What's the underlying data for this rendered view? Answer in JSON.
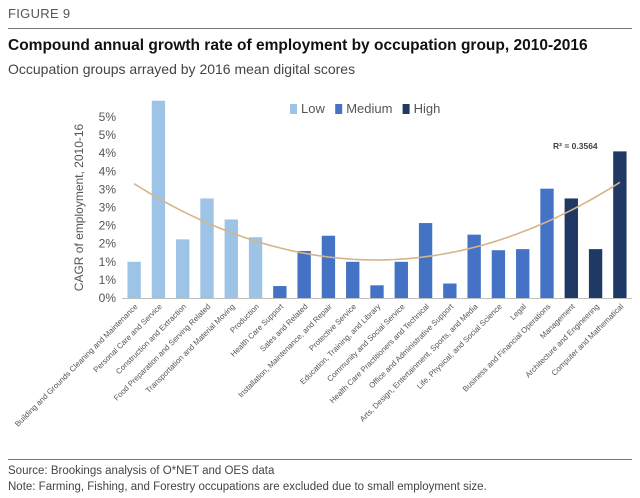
{
  "figure_label": "FIGURE 9",
  "title": "Compound annual growth rate of employment by occupation group, 2010-2016",
  "subtitle": "Occupation groups arrayed by 2016 mean digital scores",
  "source": "Source: Brookings analysis of O*NET and OES data",
  "note": "Note: Farming, Fishing, and Forestry occupations are excluded due to small employment size.",
  "chart_data": {
    "type": "bar",
    "ylabel": "CAGR of employment, 2010-16",
    "ylim": [
      0,
      5
    ],
    "yticks": [
      "0%",
      "1%",
      "1%",
      "2%",
      "2%",
      "3%",
      "3%",
      "4%",
      "4%",
      "5%",
      "5%"
    ],
    "yticks_values": [
      0,
      0.5,
      1,
      1.5,
      2,
      2.5,
      3,
      3.5,
      4,
      4.5,
      5
    ],
    "grid": false,
    "legend_position": "top",
    "legend": [
      {
        "name": "Low",
        "color": "#9dc3e6"
      },
      {
        "name": "Medium",
        "color": "#4472c4"
      },
      {
        "name": "High",
        "color": "#1f3864"
      }
    ],
    "annotation": "R² = 0.3564",
    "categories": [
      "Building and Grounds Cleaning and Maintenance",
      "Personal Care and Service",
      "Construction and Extraction",
      "Food Preparation and Serving Related",
      "Transportation and Material Moving",
      "Production",
      "Health Care Support",
      "Sales and Related",
      "Installation, Maintenance, and Repair",
      "Protective Service",
      "Education, Training, and Library",
      "Community and Social Service",
      "Health Care Practitioners and Technical",
      "Office and Administrative Support",
      "Arts, Design, Entertainment, Sports, and Media",
      "Life, Physical, and Social Science",
      "Legal",
      "Business and Financial Operations",
      "Management",
      "Architecture and Engineering",
      "Computer and Mathematical"
    ],
    "values": [
      1.0,
      5.45,
      1.62,
      2.75,
      2.17,
      1.68,
      0.33,
      1.3,
      1.72,
      1.0,
      0.35,
      1.0,
      2.07,
      0.4,
      1.75,
      1.32,
      1.35,
      3.02,
      2.75,
      1.35,
      4.05
    ],
    "groups": [
      "Low",
      "Low",
      "Low",
      "Low",
      "Low",
      "Low",
      "Medium",
      "Medium",
      "Medium",
      "Medium",
      "Medium",
      "Medium",
      "Medium",
      "Medium",
      "Medium",
      "Medium",
      "Medium",
      "Medium",
      "High",
      "High",
      "High"
    ],
    "trendline": {
      "type": "polynomial",
      "degree": 2,
      "color": "#d6b48c"
    }
  }
}
